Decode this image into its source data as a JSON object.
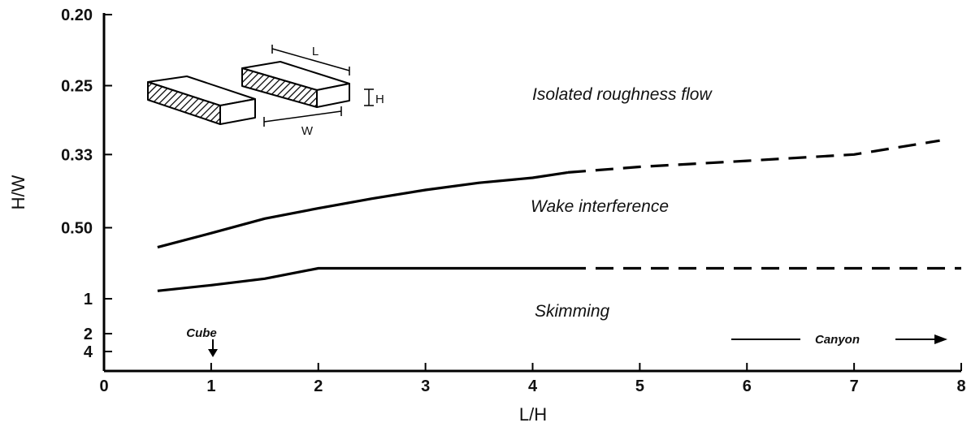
{
  "chart_data": {
    "type": "line",
    "xlabel": "L/H",
    "ylabel": "H/W",
    "xlim": [
      0,
      8
    ],
    "x_ticks": [
      "0",
      "1",
      "2",
      "3",
      "4",
      "5",
      "6",
      "7",
      "8"
    ],
    "y_ticks": [
      "0.20",
      "0.25",
      "0.33",
      "0.50",
      "1",
      "2",
      "4"
    ],
    "y_scale": "reciprocal (W/H, top to bottom)",
    "grid": false,
    "series": [
      {
        "x": [
          0.5,
          1.0,
          1.5,
          2.0,
          2.5,
          3.0,
          3.5,
          4.0,
          4.33
        ],
        "y": [
          0.58,
          0.52,
          0.47,
          0.44,
          0.415,
          0.395,
          0.38,
          0.37,
          0.36
        ],
        "style": "solid"
      },
      {
        "x": [
          4.33,
          5.0,
          6.0,
          7.0,
          7.8
        ],
        "y": [
          0.36,
          0.35,
          0.34,
          0.33,
          0.31
        ],
        "style": "dashed"
      },
      {
        "x": [
          0.5,
          1.0,
          1.5,
          2.0,
          3.0,
          4.33
        ],
        "y": [
          0.9,
          0.84,
          0.78,
          0.7,
          0.7,
          0.7
        ],
        "style": "solid"
      },
      {
        "x": [
          4.33,
          5.0,
          6.0,
          7.0,
          8.0
        ],
        "y": [
          0.7,
          0.7,
          0.7,
          0.7,
          0.7
        ],
        "style": "dashed"
      }
    ],
    "annotations": {
      "isolated": "Isolated roughness flow",
      "wake": "Wake interference",
      "skimming": "Skimming",
      "cube": "Cube",
      "canyon": "Canyon"
    },
    "diagram_labels": {
      "l": "L",
      "h": "H",
      "w": "W"
    }
  }
}
